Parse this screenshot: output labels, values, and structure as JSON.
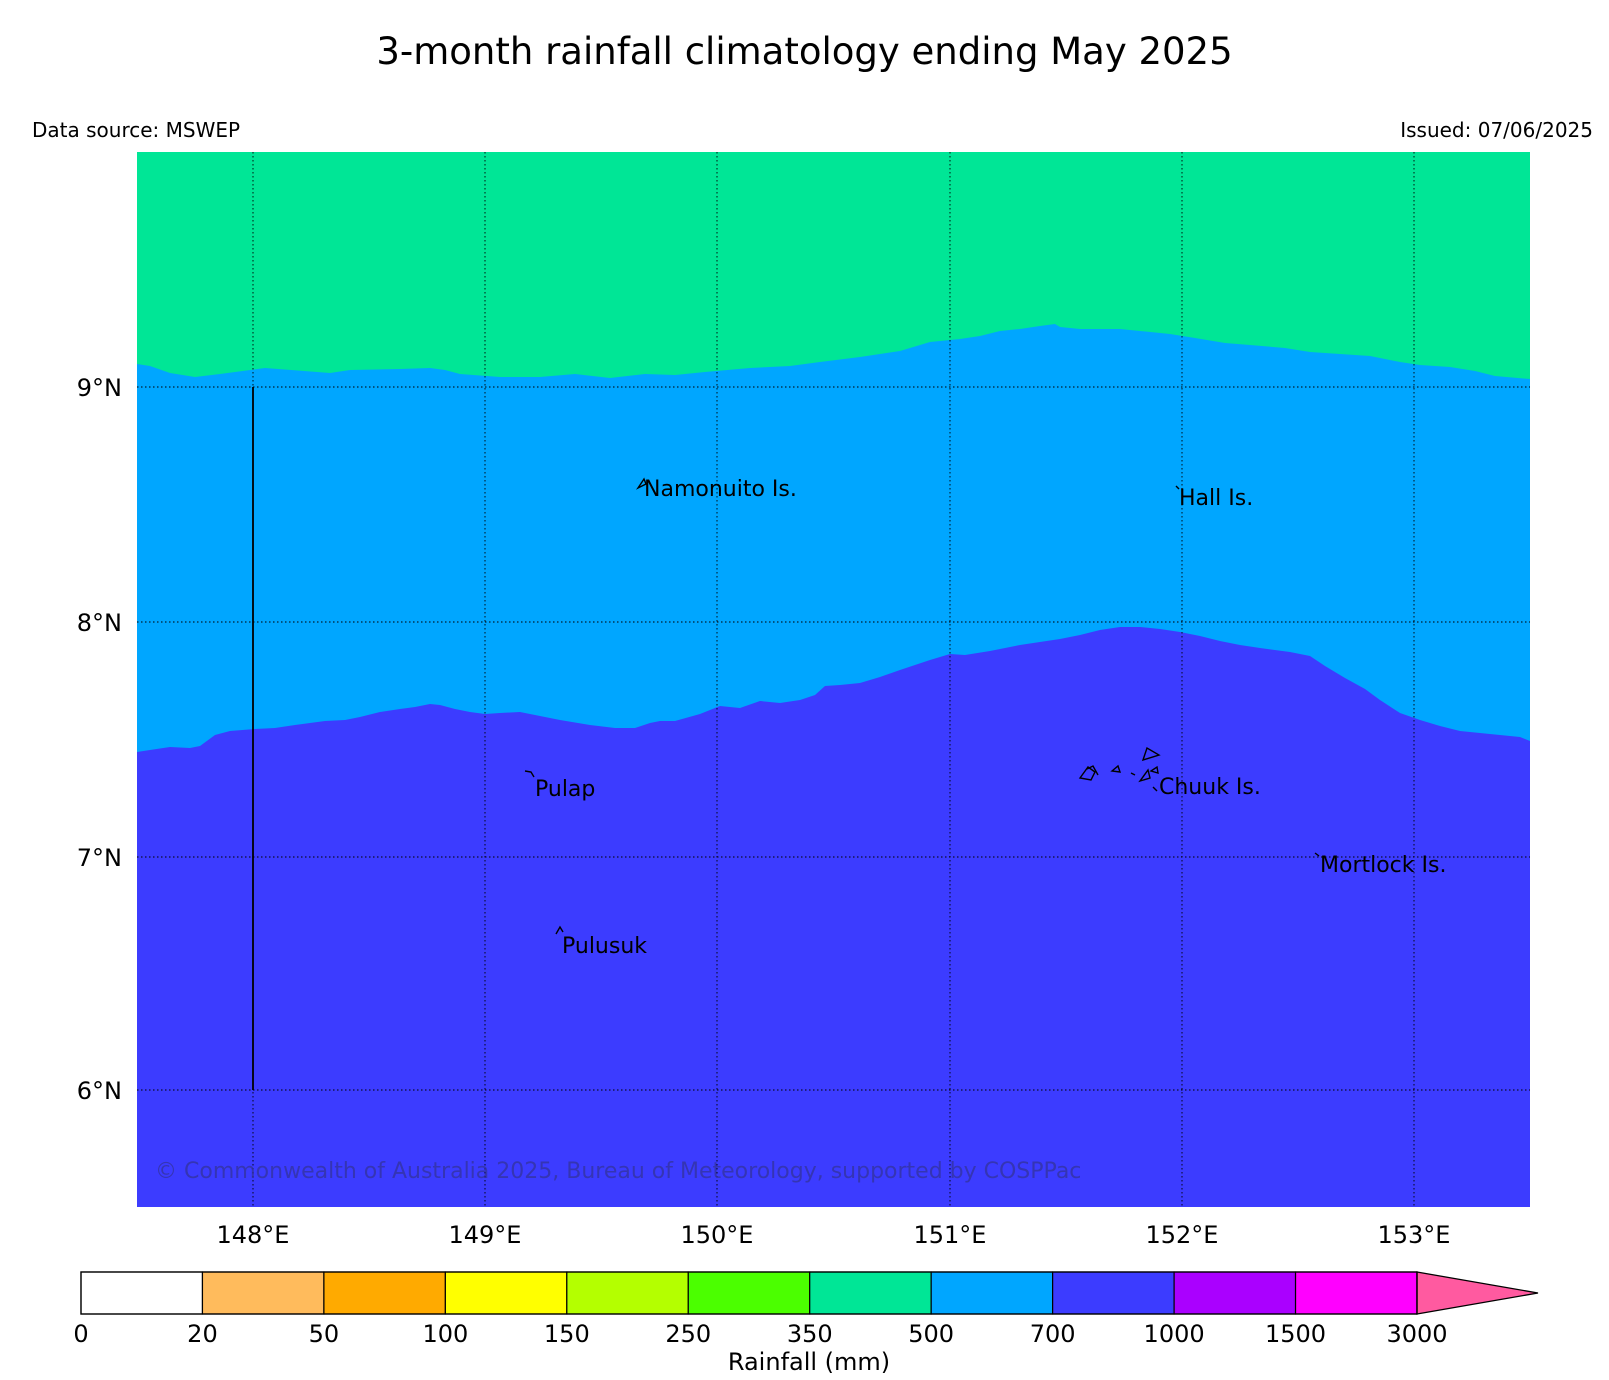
{
  "header": {
    "title": "3-month rainfall climatology ending May 2025",
    "data_source": "Data source: MSWEP",
    "issued": "Issued: 07/06/2025"
  },
  "map": {
    "lon_ticks": [
      "148°E",
      "149°E",
      "150°E",
      "151°E",
      "152°E",
      "153°E"
    ],
    "lat_ticks": [
      "9°N",
      "8°N",
      "7°N",
      "6°N"
    ],
    "grid": "dotted",
    "places": [
      {
        "name": "Namonuito Is."
      },
      {
        "name": "Hall Is."
      },
      {
        "name": "Pulap"
      },
      {
        "name": "Chuuk Is."
      },
      {
        "name": "Mortlock Is."
      },
      {
        "name": "Pulusuk"
      }
    ],
    "zones": [
      {
        "range": "350-500",
        "color": "#00e696"
      },
      {
        "range": "500-700",
        "color": "#00a6ff"
      },
      {
        "range": "700-1000",
        "color": "#3c3cff"
      }
    ],
    "copyright": "© Commonwealth of Australia 2025, Bureau of Meteorology, supported by COSPPac"
  },
  "colorbar": {
    "label": "Rainfall (mm)",
    "ticks": [
      "0",
      "20",
      "50",
      "100",
      "150",
      "250",
      "350",
      "500",
      "700",
      "1000",
      "1500",
      "3000"
    ],
    "colors": [
      "#ffffff",
      "#ffbb5c",
      "#ffaa00",
      "#ffff00",
      "#b4ff00",
      "#4bff00",
      "#00e696",
      "#00a6ff",
      "#3c3cff",
      "#aa00ff",
      "#ff00ff"
    ],
    "extend_color": "#ff5aa0"
  }
}
